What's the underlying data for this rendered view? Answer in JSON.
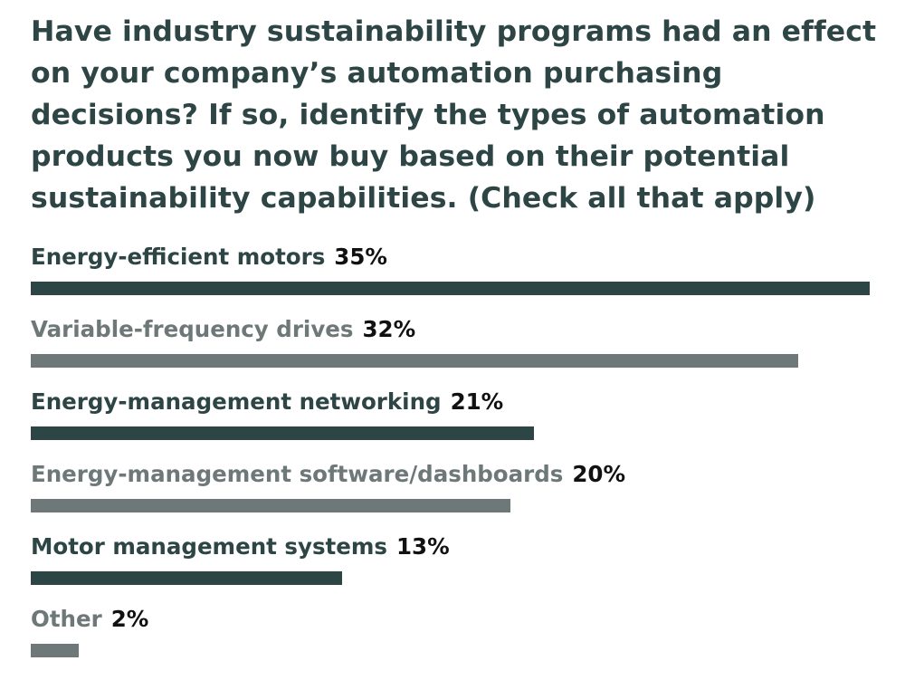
{
  "chart_data": {
    "type": "bar",
    "orientation": "horizontal",
    "title": "Have industry sustainability programs had an effect on your company’s automation purchasing decisions? If so, identify the types of automation products you now buy based on their potential sustainability capabilities. (Check all that apply)",
    "categories": [
      "Energy-efficient motors",
      "Variable-frequency drives",
      "Energy-management networking",
      "Energy-management software/dashboards",
      "Motor management systems",
      "Other"
    ],
    "values": [
      35,
      32,
      21,
      20,
      13,
      2
    ],
    "value_labels": [
      "35%",
      "32%",
      "21%",
      "20%",
      "13%",
      "2%"
    ],
    "unit": "%",
    "xlim": [
      0,
      35
    ],
    "grid": false,
    "legend": "none",
    "bar_colors": [
      "#2e4545",
      "#6e7878",
      "#2e4545",
      "#6e7878",
      "#2e4545",
      "#6e7878"
    ],
    "label_colors": [
      "#2e4545",
      "#6e7878",
      "#2e4545",
      "#6e7878",
      "#2e4545",
      "#6e7878"
    ]
  }
}
